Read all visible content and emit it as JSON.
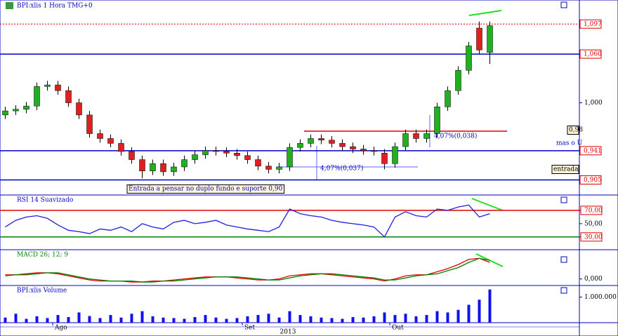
{
  "chart_data": [
    {
      "type": "candlestick",
      "title": "BPI:xlis 1 Hora TMG+0",
      "ylim": [
        0.889,
        1.124
      ],
      "yticks": [
        {
          "value": 1.0,
          "label": "1,000"
        }
      ],
      "levels": [
        {
          "value": 1.097,
          "label": "1,097",
          "color": "#e00000"
        },
        {
          "value": 1.06,
          "label": "1,060",
          "color": "#0000c0"
        },
        {
          "value": 0.941,
          "label": "0,941",
          "color": "#0000c0"
        },
        {
          "value": 0.905,
          "label": "0,905",
          "color": "#0000c0"
        }
      ],
      "annotations": [
        "Entrada a pensar no duplo fundo e suporte 0,90",
        "4,07%(0,038)",
        "4,07%(0,037)",
        "0,98",
        "mas o U",
        "entrada"
      ],
      "open": [
        0.985,
        0.99,
        0.992,
        0.996,
        1.02,
        1.022,
        1.015,
        1.0,
        0.985,
        0.962,
        0.956,
        0.95,
        0.94,
        0.93,
        0.916,
        0.925,
        0.915,
        0.921,
        0.93,
        0.936,
        0.941,
        0.94,
        0.938,
        0.935,
        0.93,
        0.922,
        0.918,
        0.921,
        0.945,
        0.95,
        0.956,
        0.954,
        0.95,
        0.946,
        0.943,
        0.941,
        0.938,
        0.925,
        0.946,
        0.962,
        0.956,
        0.962,
        0.995,
        1.015,
        1.04,
        1.092,
        1.062
      ],
      "high": [
        0.995,
        0.997,
        1.001,
        1.025,
        1.027,
        1.027,
        1.02,
        1.005,
        0.99,
        0.967,
        0.961,
        0.955,
        0.945,
        0.935,
        0.93,
        0.93,
        0.926,
        0.935,
        0.941,
        0.946,
        0.946,
        0.945,
        0.943,
        0.94,
        0.935,
        0.927,
        0.926,
        0.95,
        0.955,
        0.961,
        0.961,
        0.959,
        0.955,
        0.951,
        0.948,
        0.946,
        0.943,
        0.951,
        0.967,
        0.967,
        0.967,
        1.0,
        1.02,
        1.045,
        1.075,
        1.1,
        1.1
      ],
      "low": [
        0.98,
        0.985,
        0.987,
        0.991,
        1.015,
        1.01,
        0.995,
        0.98,
        0.957,
        0.951,
        0.945,
        0.935,
        0.925,
        0.907,
        0.911,
        0.91,
        0.91,
        0.916,
        0.925,
        0.931,
        0.935,
        0.933,
        0.93,
        0.925,
        0.917,
        0.913,
        0.913,
        0.916,
        0.94,
        0.945,
        0.949,
        0.945,
        0.941,
        0.938,
        0.936,
        0.935,
        0.918,
        0.92,
        0.941,
        0.951,
        0.951,
        0.957,
        0.99,
        1.01,
        1.035,
        1.06,
        1.048
      ],
      "close": [
        0.99,
        0.992,
        0.996,
        1.02,
        1.022,
        1.015,
        1.0,
        0.985,
        0.962,
        0.956,
        0.95,
        0.94,
        0.93,
        0.916,
        0.925,
        0.915,
        0.921,
        0.93,
        0.936,
        0.941,
        0.94,
        0.938,
        0.935,
        0.93,
        0.922,
        0.918,
        0.921,
        0.945,
        0.95,
        0.956,
        0.954,
        0.95,
        0.946,
        0.943,
        0.941,
        0.94,
        0.925,
        0.946,
        0.962,
        0.956,
        0.962,
        0.995,
        1.015,
        1.04,
        1.07,
        1.065,
        1.095
      ]
    },
    {
      "type": "line",
      "title": "RSI 14 Suavizado",
      "ylim": [
        15,
        91
      ],
      "yticks": [
        {
          "value": 70,
          "label": "70,00"
        },
        {
          "value": 50,
          "label": "50,00"
        },
        {
          "value": 30,
          "label": "30,00"
        }
      ],
      "series": [
        {
          "color": "#2020e0",
          "values": [
            45,
            55,
            60,
            62,
            58,
            48,
            40,
            38,
            35,
            42,
            40,
            45,
            38,
            50,
            45,
            42,
            52,
            55,
            50,
            52,
            55,
            48,
            45,
            42,
            40,
            38,
            45,
            72,
            65,
            62,
            60,
            55,
            52,
            50,
            48,
            45,
            30,
            60,
            68,
            62,
            60,
            72,
            70,
            75,
            78,
            60,
            65
          ]
        }
      ]
    },
    {
      "type": "line",
      "title": "MACD 26; 12; 9",
      "ylim": [
        -0.005,
        0.027
      ],
      "yticks": [
        {
          "value": 0,
          "label": "0,000"
        }
      ],
      "series": [
        {
          "color": "#e00000",
          "values": [
            0.004,
            0.004,
            0.005,
            0.006,
            0.006,
            0.005,
            0.003,
            0.001,
            -0.001,
            -0.002,
            -0.002,
            -0.002,
            -0.003,
            -0.003,
            -0.002,
            -0.002,
            -0.001,
            0.0,
            0.001,
            0.002,
            0.002,
            0.002,
            0.001,
            0.0,
            -0.001,
            -0.001,
            0.0,
            0.003,
            0.004,
            0.005,
            0.005,
            0.004,
            0.003,
            0.002,
            0.001,
            0.0,
            -0.002,
            0.0,
            0.003,
            0.004,
            0.004,
            0.007,
            0.01,
            0.014,
            0.019,
            0.02,
            0.016
          ]
        },
        {
          "color": "#008000",
          "values": [
            0.003,
            0.004,
            0.004,
            0.005,
            0.006,
            0.006,
            0.004,
            0.002,
            0.0,
            -0.001,
            -0.002,
            -0.002,
            -0.002,
            -0.003,
            -0.003,
            -0.002,
            -0.002,
            -0.001,
            0.0,
            0.001,
            0.002,
            0.002,
            0.002,
            0.001,
            0.0,
            -0.001,
            -0.001,
            0.001,
            0.003,
            0.004,
            0.005,
            0.005,
            0.004,
            0.003,
            0.002,
            0.001,
            -0.001,
            -0.001,
            0.001,
            0.003,
            0.004,
            0.005,
            0.008,
            0.011,
            0.016,
            0.02,
            0.018
          ]
        }
      ]
    },
    {
      "type": "bar",
      "title": "BPI:xlis Volume",
      "ylim": [
        0,
        1400000
      ],
      "color": "#1010f0",
      "yticks": [
        {
          "value": 1000000,
          "label": "1.000.000"
        }
      ],
      "values": [
        200000,
        350000,
        150000,
        250000,
        180000,
        300000,
        220000,
        400000,
        260000,
        180000,
        300000,
        200000,
        350000,
        450000,
        250000,
        200000,
        180000,
        150000,
        220000,
        300000,
        200000,
        150000,
        180000,
        250000,
        300000,
        350000,
        200000,
        450000,
        300000,
        250000,
        200000,
        180000,
        150000,
        220000,
        200000,
        250000,
        400000,
        300000,
        350000,
        250000,
        300000,
        450000,
        400000,
        500000,
        700000,
        900000,
        1300000
      ]
    }
  ],
  "time_axis": {
    "labels": [
      {
        "index": 5,
        "label": "Ago"
      },
      {
        "index": 23,
        "label": "Set"
      },
      {
        "index": 37,
        "label": "Out"
      }
    ],
    "year": "2013"
  }
}
